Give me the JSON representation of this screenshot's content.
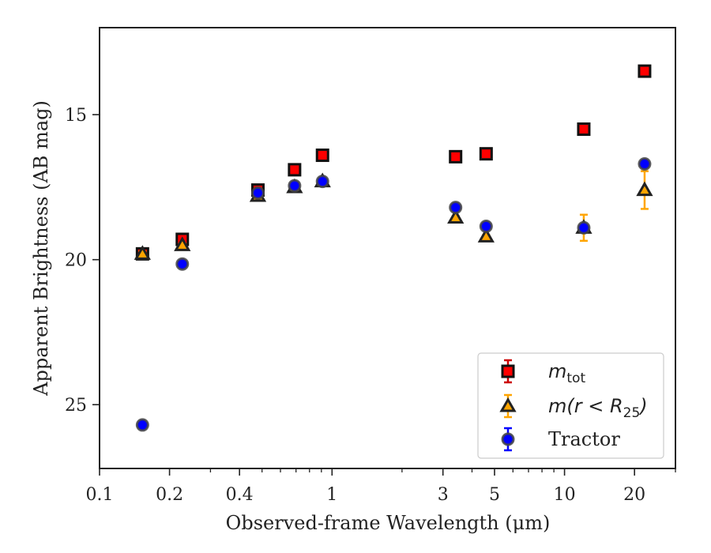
{
  "chart_data": {
    "type": "scatter",
    "xlabel": "Observed-frame Wavelength (μm)",
    "ylabel": "Apparent Brightness (AB mag)",
    "x_scale": "log",
    "y_inverted": true,
    "xlim": [
      0.1,
      30
    ],
    "ylim": [
      27.2,
      12.0
    ],
    "xticks": [
      {
        "value": 0.1,
        "label": "0.1"
      },
      {
        "value": 0.2,
        "label": "0.2"
      },
      {
        "value": 0.4,
        "label": "0.4"
      },
      {
        "value": 1,
        "label": "1"
      },
      {
        "value": 3,
        "label": "3"
      },
      {
        "value": 5,
        "label": "5"
      },
      {
        "value": 10,
        "label": "10"
      },
      {
        "value": 20,
        "label": "20"
      }
    ],
    "yticks": [
      {
        "value": 15,
        "label": "15"
      },
      {
        "value": 20,
        "label": "20"
      },
      {
        "value": 25,
        "label": "25"
      }
    ],
    "grid": false,
    "legend_position": "lower-right",
    "series": [
      {
        "name": "m_tot",
        "legend_main": "m",
        "legend_sub": "tot",
        "marker": "square",
        "color": "#ff0000",
        "edge_color": "#111111",
        "error_color": "#cc0000",
        "points": [
          {
            "x": 0.153,
            "y": 19.8,
            "err": 0.08
          },
          {
            "x": 0.227,
            "y": 19.3,
            "err": 0.05
          },
          {
            "x": 0.48,
            "y": 17.6,
            "err": 0.05
          },
          {
            "x": 0.69,
            "y": 16.9,
            "err": 0.05
          },
          {
            "x": 0.91,
            "y": 16.4,
            "err": 0.05
          },
          {
            "x": 3.4,
            "y": 16.45,
            "err": 0.05
          },
          {
            "x": 4.6,
            "y": 16.35,
            "err": 0.05
          },
          {
            "x": 12.1,
            "y": 15.5,
            "err": 0.05
          },
          {
            "x": 22.1,
            "y": 13.5,
            "err": 0.05
          }
        ]
      },
      {
        "name": "m(r < R25)",
        "legend_main": "m(r < R",
        "legend_sub": "25",
        "legend_tail": ")",
        "marker": "triangle",
        "color": "#ffa500",
        "edge_color": "#222222",
        "error_color": "#ffa500",
        "points": [
          {
            "x": 0.153,
            "y": 19.8,
            "err": 0.08
          },
          {
            "x": 0.227,
            "y": 19.5,
            "err": 0.06
          },
          {
            "x": 0.48,
            "y": 17.8,
            "err": 0.05
          },
          {
            "x": 0.69,
            "y": 17.5,
            "err": 0.05
          },
          {
            "x": 0.91,
            "y": 17.3,
            "err": 0.05
          },
          {
            "x": 3.4,
            "y": 18.55,
            "err": 0.05
          },
          {
            "x": 4.6,
            "y": 19.2,
            "err": 0.05
          },
          {
            "x": 12.1,
            "y": 18.9,
            "err": 0.45
          },
          {
            "x": 22.1,
            "y": 17.6,
            "err": 0.65
          }
        ]
      },
      {
        "name": "Tractor",
        "legend_main": "Tractor",
        "marker": "circle",
        "color": "#0000ff",
        "edge_color": "#444444",
        "error_color": "#0000ff",
        "points": [
          {
            "x": 0.153,
            "y": 25.7,
            "err": 0.05
          },
          {
            "x": 0.227,
            "y": 20.15,
            "err": 0.05
          },
          {
            "x": 0.48,
            "y": 17.7,
            "err": 0.05
          },
          {
            "x": 0.69,
            "y": 17.45,
            "err": 0.05
          },
          {
            "x": 0.91,
            "y": 17.3,
            "err": 0.05
          },
          {
            "x": 3.4,
            "y": 18.2,
            "err": 0.05
          },
          {
            "x": 4.6,
            "y": 18.85,
            "err": 0.05
          },
          {
            "x": 12.1,
            "y": 18.9,
            "err": 0.05
          },
          {
            "x": 22.1,
            "y": 16.7,
            "err": 0.05
          }
        ]
      }
    ]
  }
}
